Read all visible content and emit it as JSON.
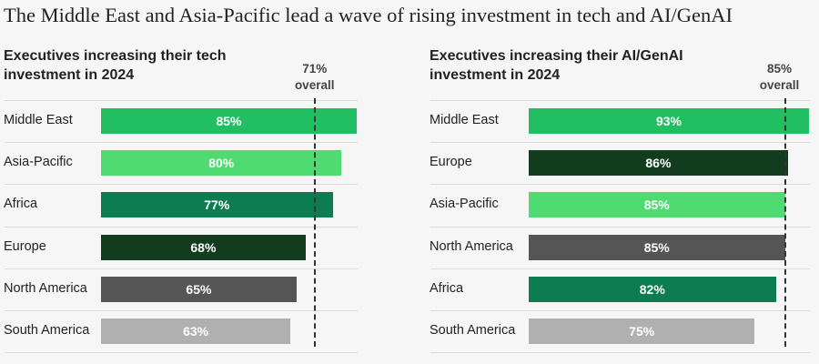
{
  "title": "The Middle East and Asia-Pacific lead a wave of rising investment in tech and AI/GenAI",
  "chart_data": [
    {
      "type": "bar",
      "orientation": "horizontal",
      "title": "Executives increasing their tech investment in 2024",
      "reference": {
        "value": 71,
        "label_value": "71%",
        "label_text": "overall"
      },
      "categories": [
        "Middle East",
        "Asia-Pacific",
        "Africa",
        "Europe",
        "North America",
        "South America"
      ],
      "values": [
        85,
        80,
        77,
        68,
        65,
        63
      ],
      "labels": [
        "85%",
        "80%",
        "77%",
        "68%",
        "65%",
        "63%"
      ],
      "colors": [
        "#22bf62",
        "#50da72",
        "#0b7d50",
        "#113c1d",
        "#555555",
        "#b0b0b0"
      ],
      "xlim": [
        0,
        85
      ],
      "unit": "%"
    },
    {
      "type": "bar",
      "orientation": "horizontal",
      "title": "Executives increasing their AI/GenAI investment in 2024",
      "reference": {
        "value": 85,
        "label_value": "85%",
        "label_text": "overall"
      },
      "categories": [
        "Middle East",
        "Europe",
        "Asia-Pacific",
        "North America",
        "Africa",
        "South America"
      ],
      "values": [
        93,
        86,
        85,
        85,
        82,
        75
      ],
      "labels": [
        "93%",
        "86%",
        "85%",
        "85%",
        "82%",
        "75%"
      ],
      "colors": [
        "#22bf62",
        "#113c1d",
        "#50da72",
        "#555555",
        "#0b7d50",
        "#b0b0b0"
      ],
      "xlim": [
        0,
        93
      ],
      "unit": "%"
    }
  ]
}
